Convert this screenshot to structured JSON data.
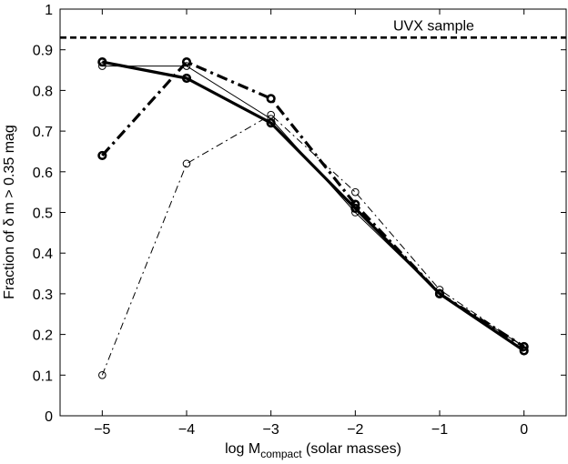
{
  "chart_data": {
    "type": "line",
    "x": [
      -5,
      -4,
      -3,
      -2,
      -1,
      0
    ],
    "x_tick_labels": [
      "−5",
      "−4",
      "−3",
      "−2",
      "−1",
      "0"
    ],
    "xlim": [
      -5.5,
      0.5
    ],
    "ylim": [
      0,
      1
    ],
    "y_ticks": [
      0,
      0.1,
      0.2,
      0.3,
      0.4,
      0.5,
      0.6,
      0.7,
      0.8,
      0.9,
      1
    ],
    "y_tick_labels": [
      "0",
      "0.1",
      "0.2",
      "0.3",
      "0.4",
      "0.5",
      "0.6",
      "0.7",
      "0.8",
      "0.9",
      "1"
    ],
    "xlabel": {
      "prefix": "log M",
      "subscript": "compact",
      "suffix": " (solar masses)"
    },
    "ylabel": {
      "prefix": "Fraction of ",
      "delta": "δ",
      "suffix": " m > 0.35 mag"
    },
    "grid": false,
    "reference_line": {
      "label": "UVX sample",
      "y": 0.93,
      "style": "dashed"
    },
    "series": [
      {
        "values": [
          0.86,
          0.86,
          0.73,
          0.5,
          0.3,
          0.17
        ],
        "style": "solid",
        "weight": "thin",
        "color": "#000000"
      },
      {
        "values": [
          0.87,
          0.83,
          0.72,
          0.51,
          0.3,
          0.16
        ],
        "style": "solid",
        "weight": "thick",
        "color": "#000000"
      },
      {
        "values": [
          0.64,
          0.87,
          0.78,
          0.52,
          0.3,
          0.17
        ],
        "style": "dashdot",
        "weight": "thick",
        "color": "#000000"
      },
      {
        "values": [
          0.1,
          0.62,
          0.74,
          0.55,
          0.31,
          0.17
        ],
        "style": "dashdot",
        "weight": "thin",
        "color": "#000000"
      }
    ]
  }
}
